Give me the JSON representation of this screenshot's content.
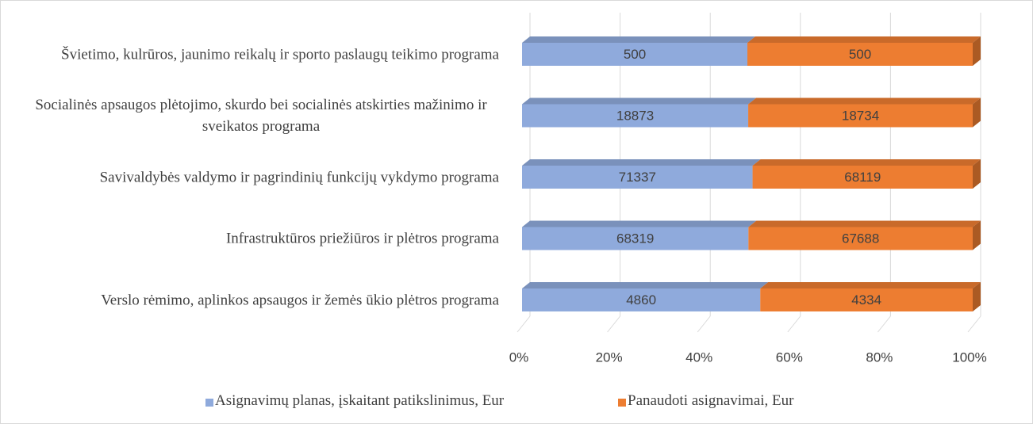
{
  "chart_data": {
    "type": "bar",
    "orientation": "horizontal",
    "stacked": "percent",
    "categories": [
      "Švietimo, kulrūros, jaunimo reikalų ir sporto paslaugų teikimo programa",
      "Socialinės apsaugos plėtojimo, skurdo bei socialinės atskirties mažinimo ir sveikatos programa",
      "Savivaldybės valdymo ir pagrindinių funkcijų vykdymo programa",
      "Infrastruktūros priežiūros ir plėtros programa",
      "Verslo rėmimo, aplinkos apsaugos ir žemės ūkio plėtros programa"
    ],
    "series": [
      {
        "name": "Asignavimų planas, įskaitant patikslinimus, Eur",
        "color": "#8faadc",
        "values": [
          500,
          18873,
          71337,
          68319,
          4860
        ]
      },
      {
        "name": "Panaudoti asignavimai, Eur",
        "color": "#ed7d31",
        "values": [
          500,
          18734,
          68119,
          67688,
          4334
        ]
      }
    ],
    "xlim": [
      0,
      100
    ],
    "xticks": [
      {
        "value": 0,
        "label": "0%"
      },
      {
        "value": 20,
        "label": "20%"
      },
      {
        "value": 40,
        "label": "40%"
      },
      {
        "value": 60,
        "label": "60%"
      },
      {
        "value": 80,
        "label": "80%"
      },
      {
        "value": 100,
        "label": "100%"
      }
    ],
    "grid": true,
    "legend": "bottom"
  }
}
